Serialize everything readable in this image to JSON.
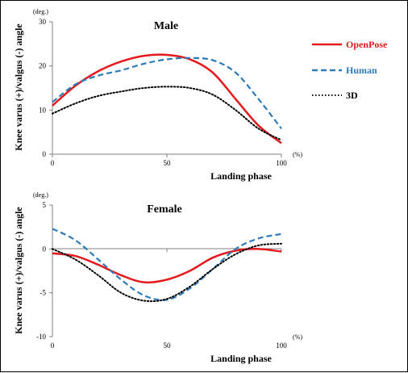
{
  "legend": [
    {
      "label": "OpenPose",
      "color": "#e41a1c",
      "style": "solid"
    },
    {
      "label": "Human",
      "color": "#2b7bba",
      "style": "dashed"
    },
    {
      "label": "3D",
      "color": "#000000",
      "style": "dotted"
    }
  ],
  "chart_data": [
    {
      "type": "line",
      "title": "Male",
      "xlabel": "Landing phase",
      "ylabel": "Knee varus (+)/valgus (-) angle",
      "y_unit": "(deg.)",
      "x_unit": "(%)",
      "xlim": [
        0,
        100
      ],
      "ylim": [
        0,
        30
      ],
      "xticks": [
        "0",
        "50",
        "100"
      ],
      "yticks": [
        "0",
        "10",
        "20",
        "30"
      ],
      "x": [
        0,
        10,
        20,
        30,
        40,
        50,
        60,
        70,
        80,
        90,
        100
      ],
      "series": [
        {
          "name": "OpenPose",
          "values": [
            11.0,
            15.5,
            18.8,
            21.0,
            22.3,
            22.5,
            21.5,
            18.5,
            12.5,
            6.5,
            2.5
          ]
        },
        {
          "name": "Human",
          "values": [
            11.8,
            15.8,
            17.8,
            19.0,
            20.5,
            21.5,
            21.8,
            21.3,
            18.5,
            12.5,
            5.8
          ]
        },
        {
          "name": "3D",
          "values": [
            9.2,
            11.5,
            13.2,
            14.2,
            15.0,
            15.3,
            15.0,
            13.5,
            10.0,
            5.8,
            3.2
          ]
        }
      ]
    },
    {
      "type": "line",
      "title": "Female",
      "xlabel": "Landing phase",
      "ylabel": "Knee varus (+)/valgus (-) angle",
      "y_unit": "(deg.)",
      "x_unit": "(%)",
      "xlim": [
        0,
        100
      ],
      "ylim": [
        -10,
        5
      ],
      "xticks": [
        "0",
        "50",
        "100"
      ],
      "yticks": [
        "-10",
        "-5",
        "0",
        "5"
      ],
      "x": [
        0,
        10,
        20,
        30,
        40,
        50,
        60,
        70,
        80,
        90,
        100
      ],
      "series": [
        {
          "name": "OpenPose",
          "values": [
            -0.5,
            -0.8,
            -1.8,
            -3.0,
            -3.8,
            -3.5,
            -2.5,
            -1.0,
            -0.2,
            0.0,
            -0.3
          ]
        },
        {
          "name": "Human",
          "values": [
            2.3,
            1.0,
            -1.2,
            -3.5,
            -5.3,
            -5.8,
            -4.5,
            -2.3,
            0.0,
            1.2,
            1.7
          ]
        },
        {
          "name": "3D",
          "values": [
            0.0,
            -1.2,
            -3.0,
            -5.0,
            -5.9,
            -5.7,
            -4.3,
            -2.3,
            -0.6,
            0.4,
            0.6
          ]
        }
      ]
    }
  ]
}
